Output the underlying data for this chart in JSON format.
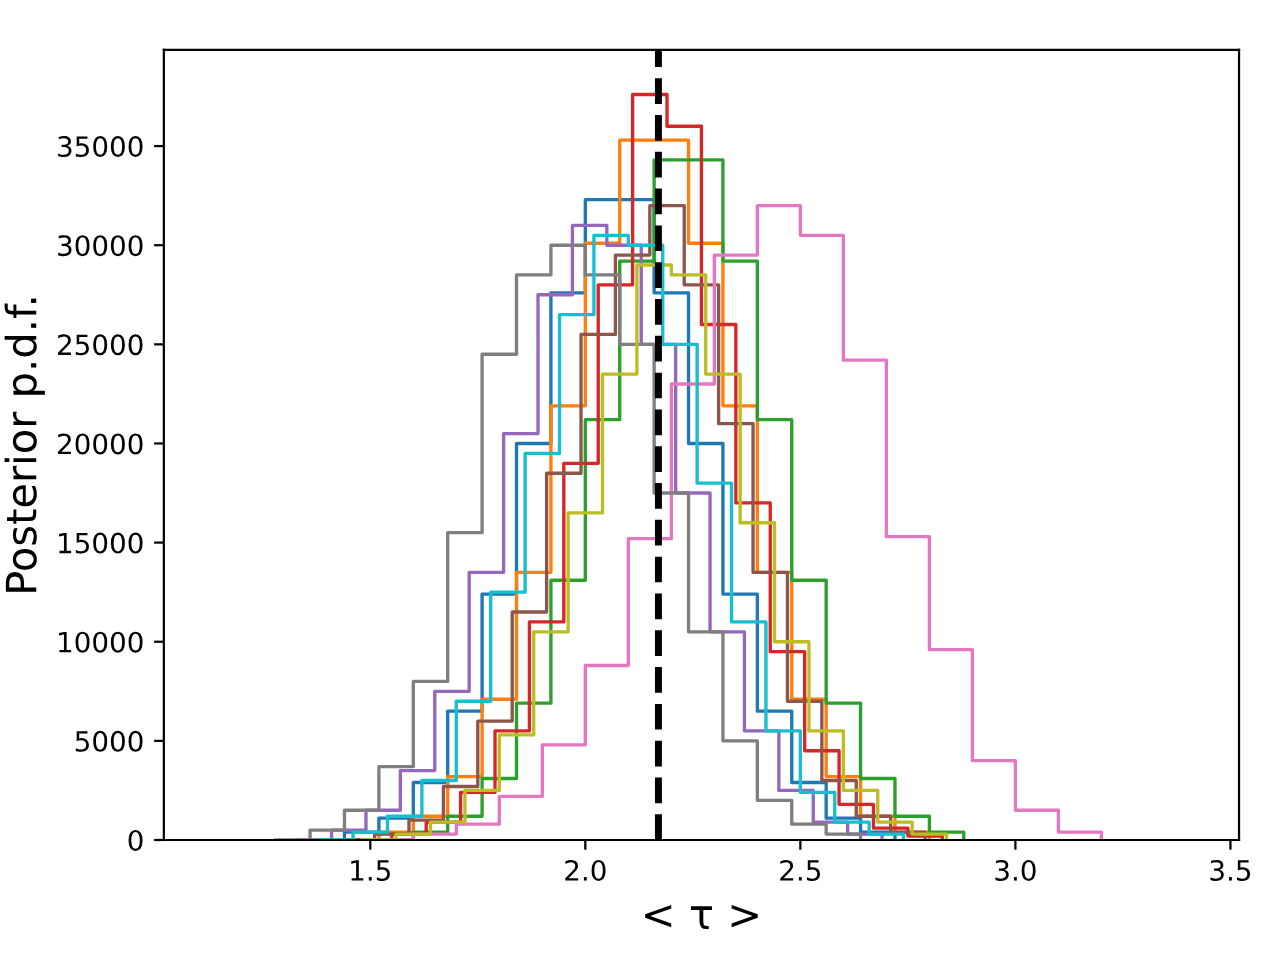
{
  "chart_data": {
    "type": "step",
    "xlabel": "< τ >",
    "ylabel": "Posterior p.d.f.",
    "xlim": [
      1.02,
      3.52
    ],
    "xticks": [
      1.5,
      {
        "value": 2,
        "label": "2.0"
      },
      2.5,
      {
        "value": 3,
        "label": "3.0"
      },
      3.5
    ],
    "ylim": [
      0,
      39850
    ],
    "yticks": [
      0,
      5000,
      10000,
      15000,
      20000,
      25000,
      30000,
      35000
    ],
    "grid": false,
    "legend": false,
    "ref_lines": [
      {
        "axis": "x",
        "value": 2.17,
        "color": "#000000",
        "line_style": "dashed"
      }
    ],
    "series": [
      {
        "color": "#1f77b4",
        "x": [
          1.36,
          1.44,
          1.52,
          1.6,
          1.68,
          1.76,
          1.84,
          1.92,
          2.0,
          2.08,
          2.16,
          2.24,
          2.32,
          2.4,
          2.48,
          2.56,
          2.64,
          2.72
        ],
        "values": [
          0,
          400,
          1100,
          2900,
          6500,
          12400,
          20000,
          27600,
          32300,
          32300,
          27600,
          20000,
          12400,
          6500,
          2900,
          1100,
          400,
          0
        ]
      },
      {
        "color": "#ff7f0e",
        "x": [
          1.44,
          1.52,
          1.6,
          1.68,
          1.76,
          1.84,
          1.92,
          2.0,
          2.08,
          2.16,
          2.24,
          2.32,
          2.4,
          2.48,
          2.56,
          2.64,
          2.72,
          2.8
        ],
        "values": [
          0,
          400,
          1200,
          3200,
          7100,
          13500,
          21900,
          30100,
          35300,
          35300,
          30100,
          21900,
          13500,
          7100,
          3200,
          1200,
          400,
          0
        ]
      },
      {
        "color": "#2ca02c",
        "x": [
          1.52,
          1.6,
          1.68,
          1.76,
          1.84,
          1.92,
          2.0,
          2.08,
          2.16,
          2.24,
          2.32,
          2.4,
          2.48,
          2.56,
          2.64,
          2.72,
          2.8,
          2.88
        ],
        "values": [
          0,
          400,
          1200,
          3100,
          6900,
          13100,
          21200,
          29200,
          34300,
          34300,
          29200,
          21200,
          13100,
          6900,
          3100,
          1200,
          400,
          0
        ]
      },
      {
        "color": "#d62728",
        "x": [
          1.47,
          1.55,
          1.63,
          1.71,
          1.79,
          1.87,
          1.95,
          2.03,
          2.11,
          2.19,
          2.27,
          2.35,
          2.43,
          2.51,
          2.59,
          2.67,
          2.75,
          2.83
        ],
        "values": [
          0,
          300,
          900,
          2400,
          5500,
          11000,
          19000,
          28000,
          37600,
          36000,
          26000,
          17000,
          9500,
          4500,
          1800,
          600,
          200,
          0
        ]
      },
      {
        "color": "#9467bd",
        "x": [
          1.33,
          1.41,
          1.49,
          1.57,
          1.65,
          1.73,
          1.81,
          1.89,
          1.97,
          2.05,
          2.13,
          2.21,
          2.29,
          2.37,
          2.45,
          2.53,
          2.61,
          2.69
        ],
        "values": [
          0,
          500,
          1500,
          3500,
          7500,
          13500,
          20500,
          27500,
          31000,
          30000,
          25000,
          17500,
          10500,
          5500,
          2500,
          900,
          300,
          0
        ]
      },
      {
        "color": "#8c564b",
        "x": [
          1.43,
          1.51,
          1.59,
          1.67,
          1.75,
          1.83,
          1.91,
          1.99,
          2.07,
          2.15,
          2.23,
          2.31,
          2.39,
          2.47,
          2.55,
          2.63,
          2.71,
          2.79
        ],
        "values": [
          0,
          300,
          1000,
          2700,
          6000,
          11500,
          18500,
          25500,
          29500,
          32000,
          28000,
          21000,
          13500,
          7000,
          3000,
          1200,
          400,
          0
        ]
      },
      {
        "color": "#e377c2",
        "x": [
          1.5,
          1.6,
          1.7,
          1.8,
          1.9,
          2.0,
          2.1,
          2.2,
          2.3,
          2.4,
          2.5,
          2.6,
          2.7,
          2.8,
          2.9,
          3.0,
          3.1,
          3.2
        ],
        "values": [
          0,
          300,
          800,
          2200,
          4800,
          8800,
          15200,
          23000,
          29500,
          32000,
          30500,
          24200,
          15300,
          9600,
          4000,
          1500,
          400,
          0
        ]
      },
      {
        "color": "#7f7f7f",
        "x": [
          1.28,
          1.36,
          1.44,
          1.52,
          1.6,
          1.68,
          1.76,
          1.84,
          1.92,
          2.0,
          2.08,
          2.16,
          2.24,
          2.32,
          2.4,
          2.48,
          2.56,
          2.64
        ],
        "values": [
          0,
          500,
          1500,
          3700,
          8000,
          15500,
          24500,
          28500,
          30000,
          28500,
          25000,
          17500,
          10500,
          5000,
          2000,
          800,
          300,
          0
        ]
      },
      {
        "color": "#bcbd22",
        "x": [
          1.48,
          1.56,
          1.64,
          1.72,
          1.8,
          1.88,
          1.96,
          2.04,
          2.12,
          2.2,
          2.28,
          2.36,
          2.44,
          2.52,
          2.6,
          2.68,
          2.76,
          2.84
        ],
        "values": [
          0,
          300,
          900,
          2500,
          5300,
          10500,
          16500,
          23500,
          29000,
          28500,
          23500,
          16000,
          10000,
          5500,
          2500,
          900,
          300,
          0
        ]
      },
      {
        "color": "#17becf",
        "x": [
          1.38,
          1.46,
          1.54,
          1.62,
          1.7,
          1.78,
          1.86,
          1.94,
          2.02,
          2.1,
          2.18,
          2.26,
          2.34,
          2.42,
          2.5,
          2.58,
          2.66,
          2.74
        ],
        "values": [
          0,
          400,
          1200,
          3000,
          7000,
          12500,
          19500,
          26500,
          30500,
          30000,
          25000,
          18000,
          11000,
          5500,
          2400,
          900,
          300,
          0
        ]
      }
    ]
  }
}
